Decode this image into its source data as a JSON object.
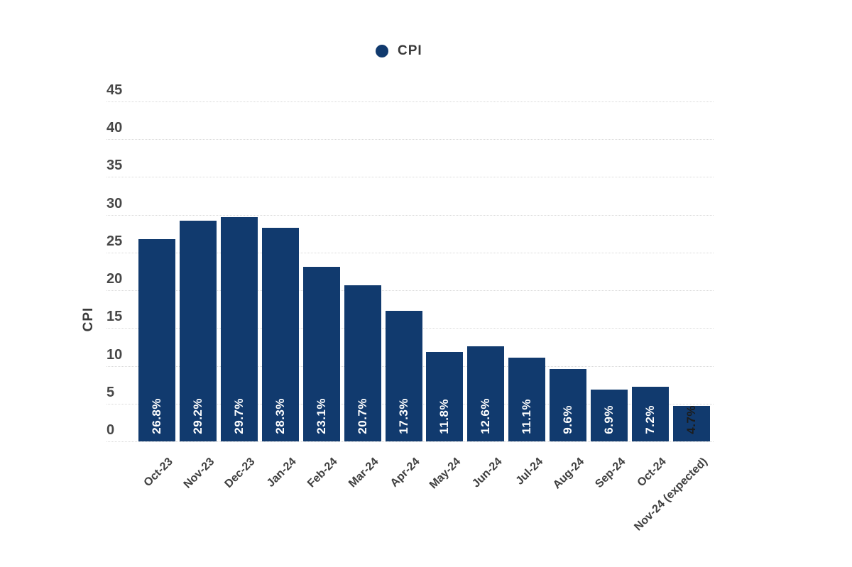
{
  "legend": {
    "label": "CPI"
  },
  "y_axis": {
    "title": "CPI",
    "ticks": [
      0,
      5,
      10,
      15,
      20,
      25,
      30,
      35,
      40,
      45
    ]
  },
  "chart_data": {
    "type": "bar",
    "title": "",
    "xlabel": "",
    "ylabel": "CPI",
    "ylim": [
      0,
      45
    ],
    "ytick_step": 5,
    "grid": true,
    "legend_entries": [
      "CPI"
    ],
    "legend_position": "top-center",
    "categories": [
      "Oct-23",
      "Nov-23",
      "Dec-23",
      "Jan-24",
      "Feb-24",
      "Mar-24",
      "Apr-24",
      "May-24",
      "Jun-24",
      "Jul-24",
      "Aug-24",
      "Sep-24",
      "Oct-24",
      "Nov-24 (expected)"
    ],
    "values": [
      26.8,
      29.2,
      29.7,
      28.3,
      23.1,
      20.7,
      17.3,
      11.8,
      12.6,
      11.1,
      9.6,
      6.9,
      7.2,
      4.7
    ],
    "bar_labels": [
      "26.8%",
      "29.2%",
      "29.7%",
      "28.3%",
      "23.1%",
      "20.7%",
      "17.3%",
      "11.8%",
      "12.6%",
      "11.1%",
      "9.6%",
      "6.9%",
      "7.2%",
      "4.7%"
    ]
  },
  "colors": {
    "bar": "#113a6e",
    "bar_label_inside": "#ffffff",
    "bar_label_outside": "#1c1c1c",
    "axis_text": "#474747",
    "gridline": "#d9d9d9",
    "background": "#ffffff"
  }
}
